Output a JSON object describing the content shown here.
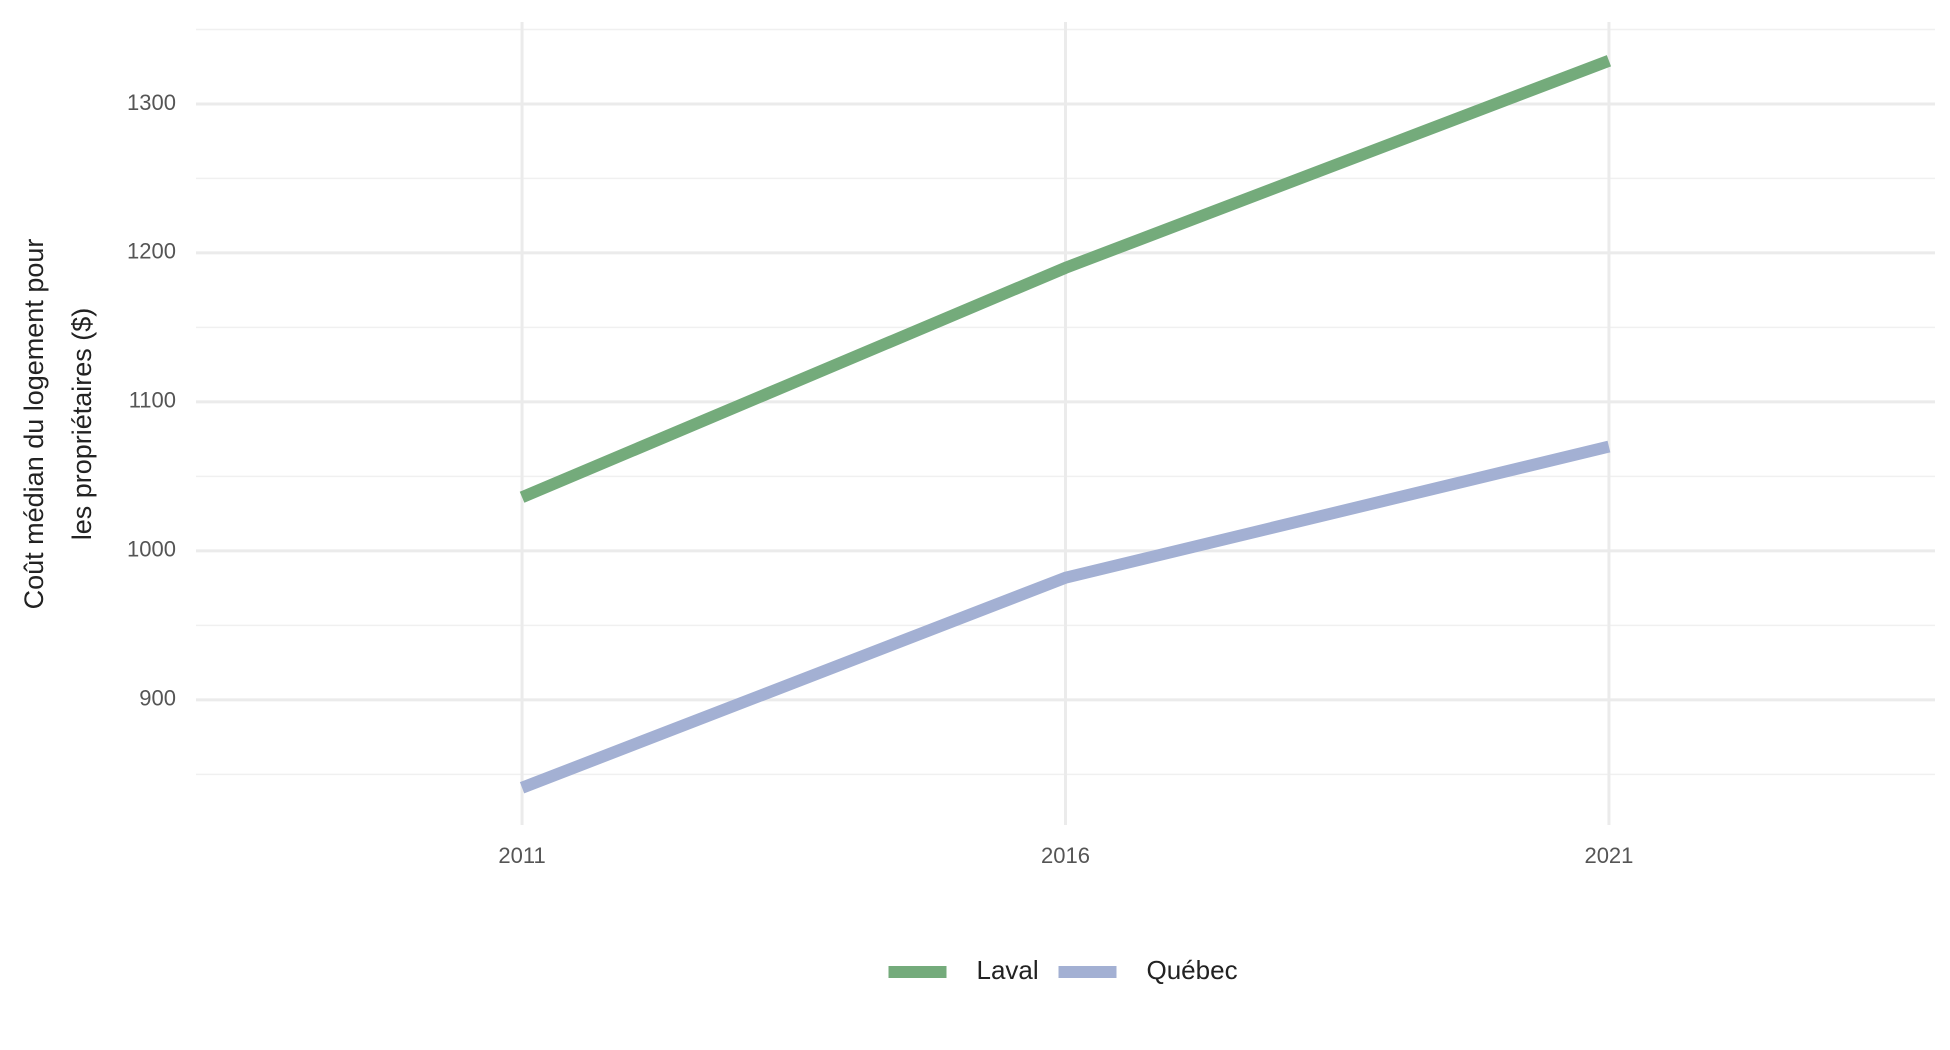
{
  "chart_data": {
    "type": "line",
    "ylabel": [
      "Coût médian du logement pour",
      "les propriétaires ($)"
    ],
    "x": [
      2011,
      2016,
      2021
    ],
    "series": [
      {
        "name": "Laval",
        "color": "#74ab7b",
        "values": [
          1036,
          1190,
          1329
        ]
      },
      {
        "name": "Québec",
        "color": "#a3b0d3",
        "values": [
          841,
          982,
          1070
        ]
      }
    ],
    "xlim": [
      2008,
      2024
    ],
    "xticks": [
      2011,
      2016,
      2021
    ],
    "ylim": [
      816,
      1355
    ],
    "yticks": [
      900,
      1000,
      1100,
      1200,
      1300
    ],
    "grid": true,
    "legend": "bottom"
  }
}
